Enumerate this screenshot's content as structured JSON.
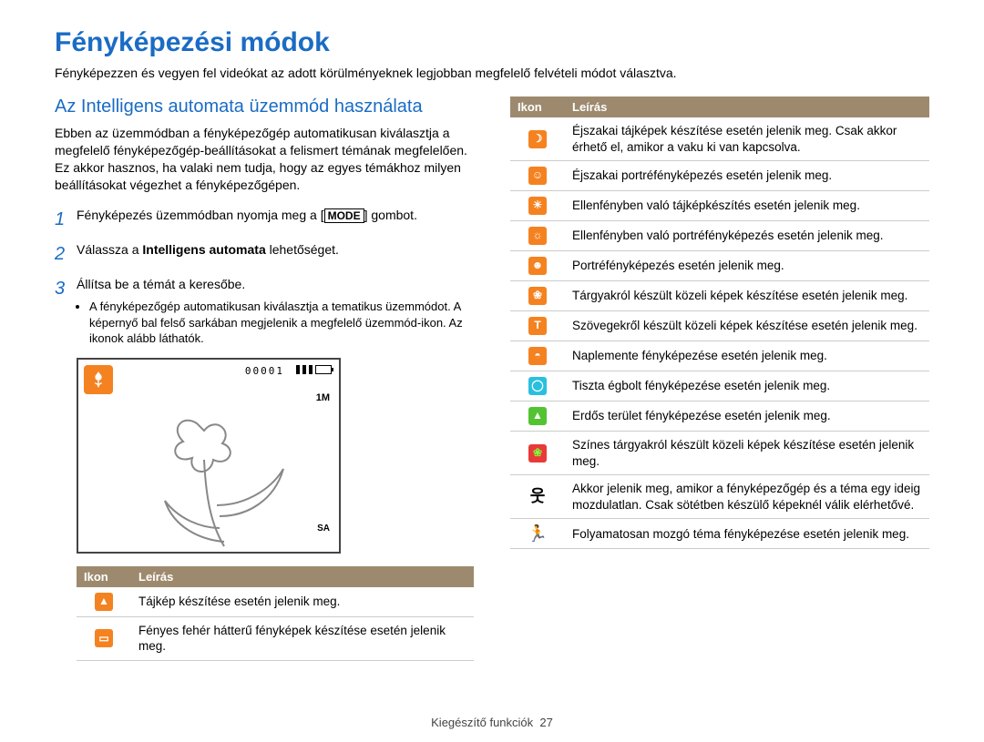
{
  "page_title": "Fényképezési módok",
  "subtitle": "Fényképezzen és vegyen fel videókat az adott körülményeknek legjobban megfelelő felvételi módot választva.",
  "section_title": "Az Intelligens automata üzemmód használata",
  "section_para": "Ebben az üzemmódban a fényképezőgép automatikusan kiválasztja a megfelelő fényképezőgép-beállításokat a felismert témának megfelelően. Ez akkor hasznos, ha valaki nem tudja, hogy az egyes témákhoz milyen beállításokat végezhet a fényképezőgépen.",
  "steps": [
    {
      "num": "1",
      "pre": "Fényképezés üzemmódban nyomja meg a ",
      "key": "MODE",
      "post": " gombot."
    },
    {
      "num": "2",
      "pre": "Válassza a ",
      "bold": "Intelligens automata",
      "post": " lehetőséget."
    },
    {
      "num": "3",
      "pre": "Állítsa be a témát a keresőbe."
    }
  ],
  "step3_bullet": "A fényképezőgép automatikusan kiválasztja a tematikus üzemmódot. A képernyő bal felső sarkában megjelenik a megfelelő üzemmód-ikon. Az ikonok alább láthatók.",
  "camera_counter": "00001",
  "camera_1m": "1M",
  "camera_sa": "SA",
  "table_headers": {
    "icon": "Ikon",
    "desc": "Leírás"
  },
  "left_rows": [
    {
      "bg": "#f58220",
      "fg": "#ffffff",
      "glyph": "▲",
      "desc": "Tájkép készítése esetén jelenik meg."
    },
    {
      "bg": "#f58220",
      "fg": "#ffffff",
      "glyph": "▭",
      "desc": "Fényes fehér hátterű fényképek készítése esetén jelenik meg."
    }
  ],
  "right_rows": [
    {
      "bg": "#f58220",
      "fg": "#ffffff",
      "glyph": "☽",
      "desc": "Éjszakai tájképek készítése esetén jelenik meg. Csak akkor érhető el, amikor a vaku ki van kapcsolva."
    },
    {
      "bg": "#f58220",
      "fg": "#ffffff",
      "glyph": "☺",
      "desc": "Éjszakai portréfényképezés esetén jelenik meg."
    },
    {
      "bg": "#f58220",
      "fg": "#ffffff",
      "glyph": "☀",
      "desc": "Ellenfényben való tájképkészítés esetén jelenik meg."
    },
    {
      "bg": "#f58220",
      "fg": "#ffffff",
      "glyph": "☼",
      "desc": "Ellenfényben való portréfényképezés esetén jelenik meg."
    },
    {
      "bg": "#f58220",
      "fg": "#ffffff",
      "glyph": "☻",
      "desc": "Portréfényképezés esetén jelenik meg."
    },
    {
      "bg": "#f58220",
      "fg": "#ffffff",
      "glyph": "❀",
      "desc": "Tárgyakról készült közeli képek készítése esetén jelenik meg."
    },
    {
      "bg": "#f58220",
      "fg": "#ffffff",
      "glyph": "T",
      "desc": "Szövegekről készült közeli képek készítése esetén jelenik meg."
    },
    {
      "bg": "#f58220",
      "fg": "#ffffff",
      "glyph": "◓",
      "desc": "Naplemente fényképezése esetén jelenik meg."
    },
    {
      "bg": "#29c0e0",
      "fg": "#ffffff",
      "glyph": "◯",
      "desc": "Tiszta égbolt fényképezése esetén jelenik meg."
    },
    {
      "bg": "#53c332",
      "fg": "#ffffff",
      "glyph": "▲",
      "desc": "Erdős terület fényképezése esetén jelenik meg."
    },
    {
      "bg": "#e93a3a",
      "fg": "#7dff3a",
      "glyph": "❀",
      "desc": "Színes tárgyakról készült közeli képek készítése esetén jelenik meg."
    },
    {
      "type": "stick",
      "glyph": "웃",
      "desc": "Akkor jelenik meg, amikor a fényképezőgép és a téma egy ideig mozdulatlan. Csak sötétben készülő képeknél válik elérhetővé."
    },
    {
      "type": "stick",
      "glyph": "🏃",
      "desc": "Folyamatosan mozgó téma fényképezése esetén jelenik meg."
    }
  ],
  "footer": {
    "label": "Kiegészítő funkciók",
    "page": "27"
  }
}
